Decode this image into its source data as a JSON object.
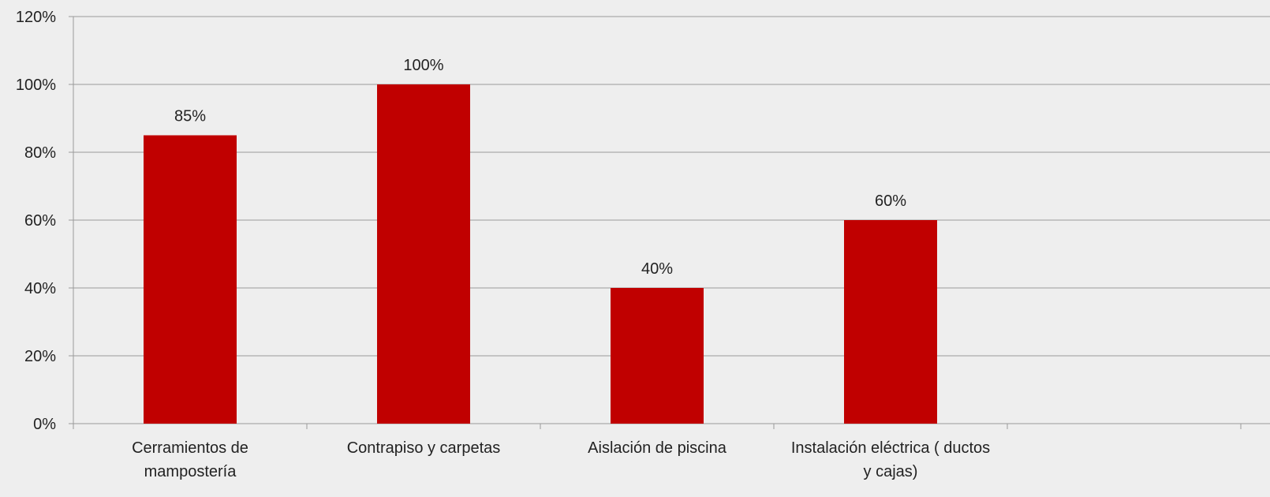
{
  "chart_data": {
    "type": "bar",
    "title": "",
    "xlabel": "",
    "ylabel": "",
    "categories": [
      [
        "Cerramientos de",
        "mampostería"
      ],
      [
        "Contrapiso y carpetas"
      ],
      [
        "Aislación de piscina"
      ],
      [
        "Instalación eléctrica ( ductos",
        "y cajas)"
      ],
      [
        ""
      ]
    ],
    "values": [
      85,
      100,
      40,
      60,
      null
    ],
    "data_labels": [
      "85%",
      "100%",
      "40%",
      "60%",
      ""
    ],
    "ylim": [
      0,
      120
    ],
    "yticks": [
      0,
      20,
      40,
      60,
      80,
      100,
      120
    ],
    "ytick_labels": [
      "0%",
      "20%",
      "40%",
      "60%",
      "80%",
      "100%",
      "120%"
    ],
    "grid": true,
    "legend": "none",
    "colors": {
      "bar": "#c00000",
      "grid": "#9a9a9a",
      "background": "#eeeeee"
    }
  }
}
